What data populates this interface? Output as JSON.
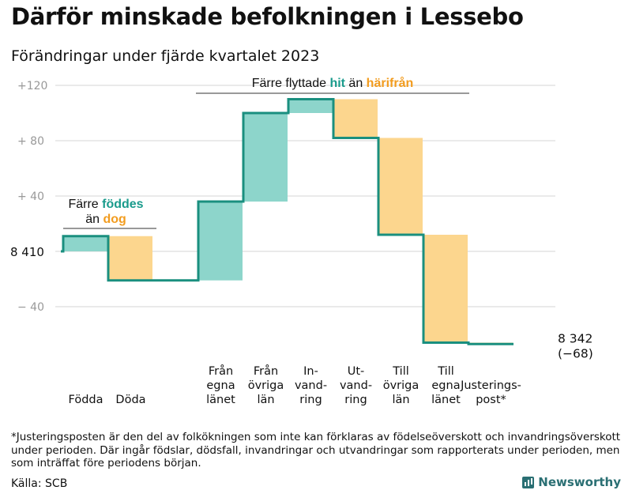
{
  "title": "Därför minskade befolkningen i Lessebo",
  "subtitle": "Förändringar under fjärde kvartalet 2023",
  "colors": {
    "increase": "#8dd5cb",
    "decrease": "#fcd68e",
    "line": "#1a8f7f",
    "accent_in": "#1a9b8c",
    "accent_out": "#f29c1f",
    "grid": "#dddddd",
    "tick": "#999999"
  },
  "chart_data": {
    "type": "waterfall",
    "start_value": 8410,
    "start_label": "8 410",
    "end_label": "8 342",
    "end_change_label": "(−68)",
    "y_axis": {
      "range": [
        -75,
        125
      ],
      "ticks": [
        {
          "value": 120,
          "label": "+120"
        },
        {
          "value": 80,
          "label": "+  80"
        },
        {
          "value": 40,
          "label": "+  40"
        },
        {
          "value": -40,
          "label": "−  40"
        }
      ]
    },
    "steps": [
      {
        "label_lines": [
          "Födda"
        ],
        "change": 11
      },
      {
        "label_lines": [
          "Döda"
        ],
        "change": -32
      },
      {
        "label_lines": [
          ""
        ],
        "change": 0
      },
      {
        "label_lines": [
          "Från",
          "egna",
          "länet"
        ],
        "change": 57
      },
      {
        "label_lines": [
          "Från",
          "övriga",
          "län"
        ],
        "change": 64
      },
      {
        "label_lines": [
          "In-",
          "vand-",
          "ring"
        ],
        "change": 10
      },
      {
        "label_lines": [
          "Ut-",
          "vand-",
          "ring"
        ],
        "change": -28
      },
      {
        "label_lines": [
          "Till",
          "övriga",
          "län"
        ],
        "change": -70
      },
      {
        "label_lines": [
          "Till",
          "egna",
          "länet"
        ],
        "change": -78
      },
      {
        "label_lines": [
          "Justerings-",
          "post*"
        ],
        "change": -1
      }
    ],
    "annotations": {
      "births": {
        "line1": "Färre",
        "word_in": "föddes",
        "line2": "än",
        "word_out": "dog"
      },
      "migration": {
        "text_a": "Färre flyttade",
        "word_in": "hit",
        "text_b": "än",
        "word_out": "härifrån"
      }
    }
  },
  "footnote": "*Justeringsposten är den del av folkökningen som inte kan förklaras av födelseöverskott och invandringsöverskott under perioden. Där ingår födslar, dödsfall, invandringar och utvandringar som rapporterats under perioden, men som inträffat före periodens början.",
  "source": "Källa: SCB",
  "brand": "Newsworthy"
}
